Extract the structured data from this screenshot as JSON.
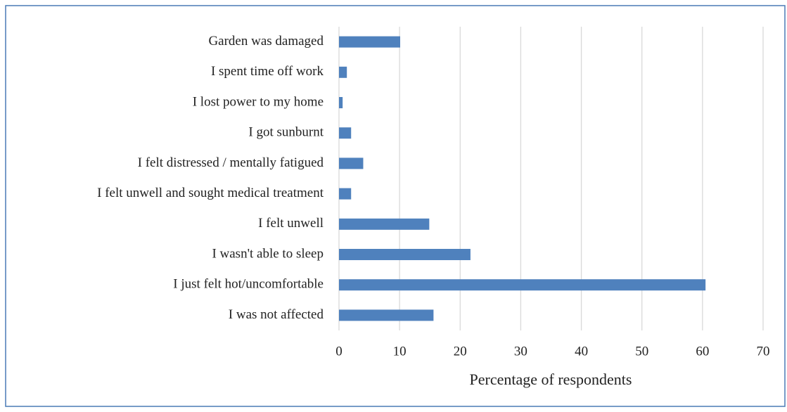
{
  "chart_data": {
    "type": "barh",
    "categories": [
      "Garden was damaged",
      "I spent time off work",
      "I lost power to my home",
      "I got sunburnt",
      "I felt distressed / mentally fatigued",
      "I felt unwell and sought medical treatment",
      "I felt unwell",
      "I wasn't able to sleep",
      "I just felt hot/uncomfortable",
      "I was not affected"
    ],
    "values": [
      10.1,
      1.3,
      0.6,
      2.0,
      4.0,
      2.0,
      14.9,
      21.7,
      60.5,
      15.6
    ],
    "color": "#4f81bd",
    "xlabel": "Percentage of respondents",
    "xlim": [
      0,
      70
    ],
    "xticks": [
      0,
      10,
      20,
      30,
      40,
      50,
      60,
      70
    ],
    "grid": true
  }
}
